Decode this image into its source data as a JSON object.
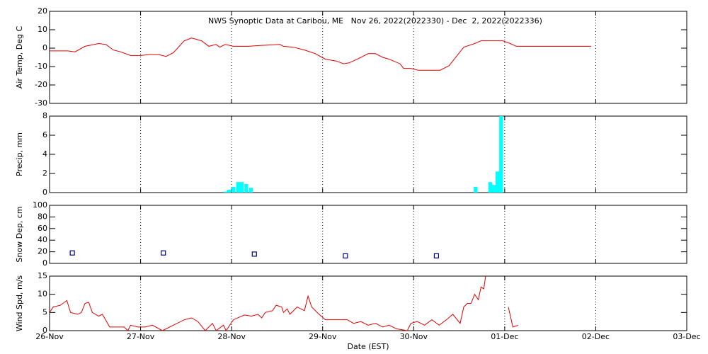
{
  "chart_data": [
    {
      "type": "line",
      "title": "NWS Synoptic Data at Caribou, ME   Nov 26, 2022(2022330) - Dec  2, 2022(2022336)",
      "y_label": "Air Temp, Deg C",
      "xlim": [
        0,
        7
      ],
      "xticks": [
        0,
        1,
        2,
        3,
        4,
        5,
        6,
        7
      ],
      "ylim": [
        -30,
        20
      ],
      "yticks": [
        -30,
        -20,
        -10,
        0,
        10,
        20
      ],
      "grid": true,
      "series": [
        {
          "color": "#e00000",
          "x": [
            0,
            0.2,
            0.28,
            0.39,
            0.54,
            0.62,
            0.7,
            0.78,
            0.89,
            1.0,
            1.09,
            1.2,
            1.28,
            1.36,
            1.48,
            1.56,
            1.67,
            1.75,
            1.83,
            1.87,
            1.93,
            2.02,
            2.18,
            2.33,
            2.53,
            2.57,
            2.68,
            2.8,
            2.92,
            3.03,
            3.15,
            3.23,
            3.29,
            3.38,
            3.5,
            3.58,
            3.66,
            3.73,
            3.85,
            3.89,
            3.97,
            4.05,
            4.16,
            4.29,
            4.39,
            4.47,
            4.55,
            4.67,
            4.74,
            4.98,
            5.06,
            5.13,
            5.95
          ],
          "values": [
            -1.5,
            -1.5,
            -2,
            1,
            2.5,
            2,
            -1,
            -2,
            -4,
            -4,
            -3.5,
            -3.5,
            -4.5,
            -2.5,
            4,
            5.5,
            4,
            1,
            2,
            0.5,
            2,
            1,
            1,
            1.5,
            2,
            1,
            0.5,
            -1,
            -3,
            -6,
            -7,
            -8.5,
            -8,
            -6,
            -3,
            -3,
            -5,
            -6,
            -8.5,
            -11,
            -11,
            -12,
            -12,
            -12,
            -9.5,
            -4.5,
            0.5,
            2.5,
            4,
            4,
            2.5,
            1,
            1
          ]
        }
      ]
    },
    {
      "type": "bar",
      "y_label": "Precip, mm",
      "xlim": [
        0,
        7
      ],
      "xticks": [
        0,
        1,
        2,
        3,
        4,
        5,
        6,
        7
      ],
      "ylim": [
        0,
        8
      ],
      "yticks": [
        0,
        2,
        4,
        6,
        8
      ],
      "grid": true,
      "series": [
        {
          "color": "#00ffff",
          "x": [
            1.91,
            1.95,
            2.0,
            2.05,
            2.09,
            2.14,
            2.19,
            4.66,
            4.82,
            4.86,
            4.9,
            4.94
          ],
          "values": [
            0.1,
            0.3,
            0.6,
            1.1,
            1.1,
            0.9,
            0.5,
            0.6,
            1.1,
            0.8,
            2.2,
            8
          ]
        }
      ]
    },
    {
      "type": "scatter",
      "y_label": "Snow Dep, cm",
      "xlim": [
        0,
        7
      ],
      "xticks": [
        0,
        1,
        2,
        3,
        4,
        5,
        6,
        7
      ],
      "ylim": [
        0,
        100
      ],
      "yticks": [
        0,
        20,
        40,
        60,
        80,
        100
      ],
      "grid": true,
      "series": [
        {
          "color": "#000080",
          "x": [
            0.25,
            1.25,
            2.25,
            3.25,
            4.25
          ],
          "values": [
            18,
            18,
            16,
            13,
            13
          ]
        }
      ]
    },
    {
      "type": "line",
      "y_label": "Wind Spd, m/s",
      "x_label": "Date (EST)",
      "xlim": [
        0,
        7
      ],
      "xticks": [
        {
          "value": 0,
          "label": "26-Nov"
        },
        {
          "value": 1,
          "label": "27-Nov"
        },
        {
          "value": 2,
          "label": "28-Nov"
        },
        {
          "value": 3,
          "label": "29-Nov"
        },
        {
          "value": 4,
          "label": "30-Nov"
        },
        {
          "value": 5,
          "label": "01-Dec"
        },
        {
          "value": 6,
          "label": "02-Dec"
        },
        {
          "value": 7,
          "label": "03-Dec"
        }
      ],
      "ylim": [
        0,
        15
      ],
      "yticks": [
        0,
        5,
        10,
        15
      ],
      "grid": true,
      "series": [
        {
          "color": "#e00000",
          "x": [
            0,
            0.04,
            0.12,
            0.19,
            0.23,
            0.31,
            0.35,
            0.39,
            0.43,
            0.47,
            0.54,
            0.58,
            0.66,
            0.82,
            0.86,
            0.89,
            0.97,
            1.05,
            1.13,
            1.24,
            1.36,
            1.48,
            1.56,
            1.63,
            1.71,
            1.79,
            1.83,
            1.91,
            1.94,
            2.02,
            2.14,
            2.22,
            2.29,
            2.33,
            2.37,
            2.45,
            2.49,
            2.55,
            2.57,
            2.61,
            2.64,
            2.72,
            2.8,
            2.84,
            2.88,
            2.96,
            3.03,
            3.27,
            3.34,
            3.42,
            3.5,
            3.58,
            3.66,
            3.73,
            3.81,
            3.93,
            3.97,
            4.04,
            4.12,
            4.2,
            4.28,
            4.36,
            4.43,
            4.51,
            4.55,
            4.59,
            4.63,
            4.67,
            4.71,
            4.74,
            4.77,
            4.79,
            4.9,
            5.04,
            5.09,
            5.15
          ],
          "values": [
            5,
            6.5,
            7,
            8.3,
            5,
            4.5,
            5,
            7.5,
            7.8,
            5,
            4,
            4.5,
            1,
            1,
            0,
            1.5,
            1,
            1,
            1.5,
            0,
            1.5,
            3,
            3.5,
            2.5,
            0,
            2,
            0,
            1.5,
            0,
            3,
            4.3,
            4,
            4.5,
            3.5,
            5,
            5.5,
            7,
            6.5,
            5,
            6,
            4.5,
            6.5,
            5.5,
            9.5,
            6.5,
            4.5,
            3,
            3,
            2,
            2.5,
            1.5,
            2,
            1,
            1.5,
            0.5,
            0,
            2,
            2.5,
            1.5,
            3,
            1.5,
            3,
            4.5,
            2,
            6.5,
            7.5,
            7.5,
            10,
            8.5,
            12,
            11.5,
            15,
            null,
            6.5,
            1,
            1.5
          ]
        }
      ]
    }
  ]
}
